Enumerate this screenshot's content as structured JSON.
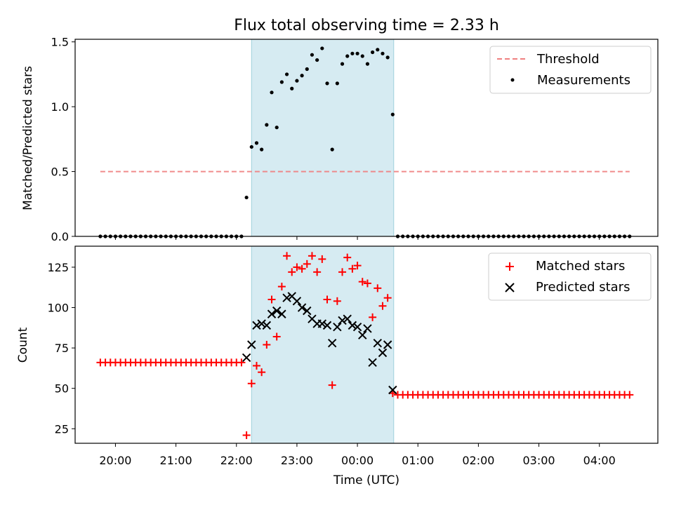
{
  "chart_data": [
    {
      "type": "scatter",
      "title": "Flux total observing time = 2.33 h",
      "xlabel": "",
      "ylabel": "Matched/Predicted stars",
      "x_axis": "time (UTC), hours",
      "xlim": [
        "19:20",
        "04:58"
      ],
      "ylim": [
        0,
        1.52
      ],
      "yticks": [
        "0.0",
        "0.5",
        "1.0",
        "1.5"
      ],
      "shaded_interval": {
        "start": "22:15",
        "end": "00:36",
        "color": "#add8e6"
      },
      "legend": {
        "placement": "top-right",
        "entries": [
          "Threshold",
          "Measurements"
        ]
      },
      "series": [
        {
          "name": "Threshold",
          "kind": "dashed-line",
          "color": "#f08080",
          "x": [
            "19:45",
            "04:30"
          ],
          "y": [
            0.5,
            0.5
          ]
        },
        {
          "name": "Measurements",
          "kind": "points",
          "color": "#000000",
          "x": [
            "19:45",
            "19:50",
            "19:55",
            "20:00",
            "20:05",
            "20:10",
            "20:15",
            "20:20",
            "20:25",
            "20:30",
            "20:35",
            "20:40",
            "20:45",
            "20:50",
            "20:55",
            "21:00",
            "21:05",
            "21:10",
            "21:15",
            "21:20",
            "21:25",
            "21:30",
            "21:35",
            "21:40",
            "21:45",
            "21:50",
            "21:55",
            "22:00",
            "22:05",
            "22:10",
            "22:15",
            "22:20",
            "22:25",
            "22:30",
            "22:35",
            "22:40",
            "22:45",
            "22:50",
            "22:55",
            "23:00",
            "23:05",
            "23:10",
            "23:15",
            "23:20",
            "23:25",
            "23:30",
            "23:35",
            "23:40",
            "23:45",
            "23:50",
            "23:55",
            "00:00",
            "00:05",
            "00:10",
            "00:15",
            "00:20",
            "00:25",
            "00:30",
            "00:35",
            "00:40",
            "00:45",
            "00:50",
            "00:55",
            "01:00",
            "01:05",
            "01:10",
            "01:15",
            "01:20",
            "01:25",
            "01:30",
            "01:35",
            "01:40",
            "01:45",
            "01:50",
            "01:55",
            "02:00",
            "02:05",
            "02:10",
            "02:15",
            "02:20",
            "02:25",
            "02:30",
            "02:35",
            "02:40",
            "02:45",
            "02:50",
            "02:55",
            "03:00",
            "03:05",
            "03:10",
            "03:15",
            "03:20",
            "03:25",
            "03:30",
            "03:35",
            "03:40",
            "03:45",
            "03:50",
            "03:55",
            "04:00",
            "04:05",
            "04:10",
            "04:15",
            "04:20",
            "04:25",
            "04:30"
          ],
          "y": [
            0,
            0,
            0,
            0,
            0,
            0,
            0,
            0,
            0,
            0,
            0,
            0,
            0,
            0,
            0,
            0,
            0,
            0,
            0,
            0,
            0,
            0,
            0,
            0,
            0,
            0,
            0,
            0,
            0,
            0.3,
            0.69,
            0.72,
            0.67,
            0.86,
            1.11,
            0.84,
            1.19,
            1.25,
            1.14,
            1.2,
            1.24,
            1.29,
            1.4,
            1.36,
            1.45,
            1.18,
            0.67,
            1.18,
            1.33,
            1.39,
            1.41,
            1.41,
            1.39,
            1.33,
            1.42,
            1.44,
            1.41,
            1.38,
            0.94,
            0,
            0,
            0,
            0,
            0,
            0,
            0,
            0,
            0,
            0,
            0,
            0,
            0,
            0,
            0,
            0,
            0,
            0,
            0,
            0,
            0,
            0,
            0,
            0,
            0,
            0,
            0,
            0,
            0,
            0,
            0,
            0,
            0,
            0,
            0,
            0,
            0,
            0,
            0,
            0,
            0,
            0,
            0,
            0,
            0,
            0,
            0
          ]
        }
      ]
    },
    {
      "type": "scatter",
      "title": "",
      "xlabel": "Time (UTC)",
      "ylabel": "Count",
      "xlim": [
        "19:20",
        "04:58"
      ],
      "ylim": [
        16,
        138
      ],
      "xticks": [
        "20:00",
        "21:00",
        "22:00",
        "23:00",
        "00:00",
        "01:00",
        "02:00",
        "03:00",
        "04:00"
      ],
      "yticks": [
        "25",
        "50",
        "75",
        "100",
        "125"
      ],
      "shaded_interval": {
        "start": "22:15",
        "end": "00:36",
        "color": "#add8e6"
      },
      "legend": {
        "placement": "top-right",
        "entries": [
          "Matched stars",
          "Predicted stars"
        ]
      },
      "series": [
        {
          "name": "Matched stars",
          "kind": "plus",
          "color": "#ff0000",
          "x": [
            "19:45",
            "19:50",
            "19:55",
            "20:00",
            "20:05",
            "20:10",
            "20:15",
            "20:20",
            "20:25",
            "20:30",
            "20:35",
            "20:40",
            "20:45",
            "20:50",
            "20:55",
            "21:00",
            "21:05",
            "21:10",
            "21:15",
            "21:20",
            "21:25",
            "21:30",
            "21:35",
            "21:40",
            "21:45",
            "21:50",
            "21:55",
            "22:00",
            "22:05",
            "22:10",
            "22:15",
            "22:20",
            "22:25",
            "22:30",
            "22:35",
            "22:40",
            "22:45",
            "22:50",
            "22:55",
            "23:00",
            "23:05",
            "23:10",
            "23:15",
            "23:20",
            "23:25",
            "23:30",
            "23:35",
            "23:40",
            "23:45",
            "23:50",
            "23:55",
            "00:00",
            "00:05",
            "00:10",
            "00:15",
            "00:20",
            "00:25",
            "00:30",
            "00:35",
            "00:40",
            "00:45",
            "00:50",
            "00:55",
            "01:00",
            "01:05",
            "01:10",
            "01:15",
            "01:20",
            "01:25",
            "01:30",
            "01:35",
            "01:40",
            "01:45",
            "01:50",
            "01:55",
            "02:00",
            "02:05",
            "02:10",
            "02:15",
            "02:20",
            "02:25",
            "02:30",
            "02:35",
            "02:40",
            "02:45",
            "02:50",
            "02:55",
            "03:00",
            "03:05",
            "03:10",
            "03:15",
            "03:20",
            "03:25",
            "03:30",
            "03:35",
            "03:40",
            "03:45",
            "03:50",
            "03:55",
            "04:00",
            "04:05",
            "04:10",
            "04:15",
            "04:20",
            "04:25",
            "04:30"
          ],
          "y": [
            66,
            66,
            66,
            66,
            66,
            66,
            66,
            66,
            66,
            66,
            66,
            66,
            66,
            66,
            66,
            66,
            66,
            66,
            66,
            66,
            66,
            66,
            66,
            66,
            66,
            66,
            66,
            66,
            66,
            21,
            53,
            64,
            60,
            77,
            105,
            82,
            113,
            132,
            122,
            125,
            124,
            127,
            132,
            122,
            130,
            105,
            52,
            104,
            122,
            131,
            124,
            126,
            116,
            115,
            94,
            112,
            101,
            106,
            47,
            46,
            46,
            46,
            46,
            46,
            46,
            46,
            46,
            46,
            46,
            46,
            46,
            46,
            46,
            46,
            46,
            46,
            46,
            46,
            46,
            46,
            46,
            46,
            46,
            46,
            46,
            46,
            46,
            46,
            46,
            46,
            46,
            46,
            46,
            46,
            46,
            46,
            46,
            46,
            46,
            46,
            46,
            46,
            46,
            46,
            46,
            46
          ]
        },
        {
          "name": "Predicted stars",
          "kind": "x",
          "color": "#000000",
          "x": [
            "22:10",
            "22:15",
            "22:20",
            "22:25",
            "22:30",
            "22:35",
            "22:40",
            "22:45",
            "22:50",
            "22:55",
            "23:00",
            "23:05",
            "23:10",
            "23:15",
            "23:20",
            "23:25",
            "23:30",
            "23:35",
            "23:40",
            "23:45",
            "23:50",
            "23:55",
            "00:00",
            "00:05",
            "00:10",
            "00:15",
            "00:20",
            "00:25",
            "00:30",
            "00:35"
          ],
          "y": [
            69,
            77,
            89,
            90,
            89,
            96,
            98,
            96,
            106,
            107,
            104,
            100,
            98,
            93,
            90,
            90,
            89,
            78,
            88,
            92,
            93,
            89,
            88,
            83,
            87,
            66,
            78,
            72,
            77,
            49
          ]
        }
      ]
    }
  ]
}
